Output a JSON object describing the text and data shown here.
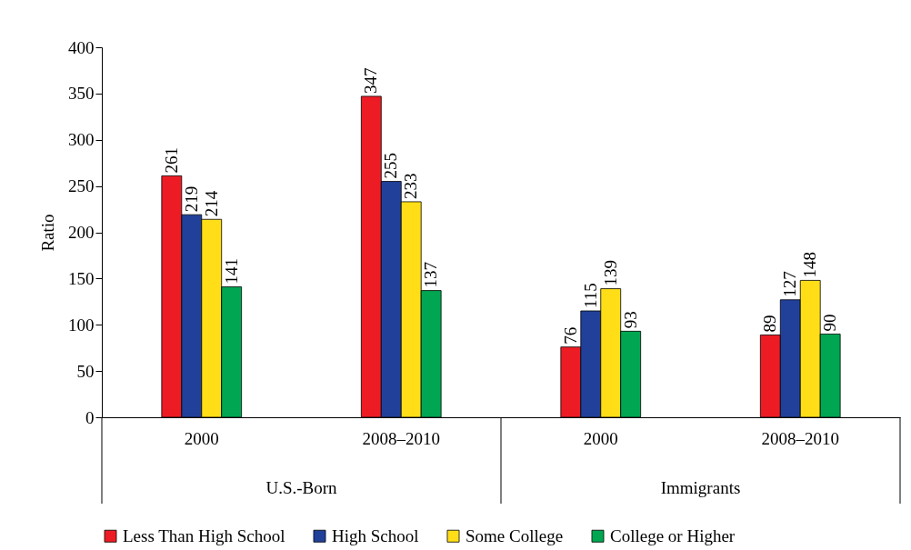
{
  "chart_data": {
    "type": "bar",
    "ylabel": "Ratio",
    "categories": [
      "2000",
      "2008–2010",
      "2000",
      "2008–2010"
    ],
    "annotations": [
      "U.S.-Born",
      "Immigrants"
    ],
    "series": [
      {
        "name": "Less Than High School",
        "color": "#ed1c24",
        "values": [
          261,
          347,
          76,
          89
        ]
      },
      {
        "name": "High School",
        "color": "#21409a",
        "values": [
          219,
          255,
          115,
          127
        ]
      },
      {
        "name": "Some College",
        "color": "#ffde17",
        "values": [
          214,
          233,
          139,
          148
        ]
      },
      {
        "name": "College or Higher",
        "color": "#00a651",
        "values": [
          141,
          137,
          93,
          90
        ]
      }
    ],
    "ylim": [
      0,
      400
    ],
    "yticks": [
      0,
      50,
      100,
      150,
      200,
      250,
      300,
      350,
      400
    ],
    "data_labels": true,
    "legend": "bottom",
    "grid": false
  }
}
